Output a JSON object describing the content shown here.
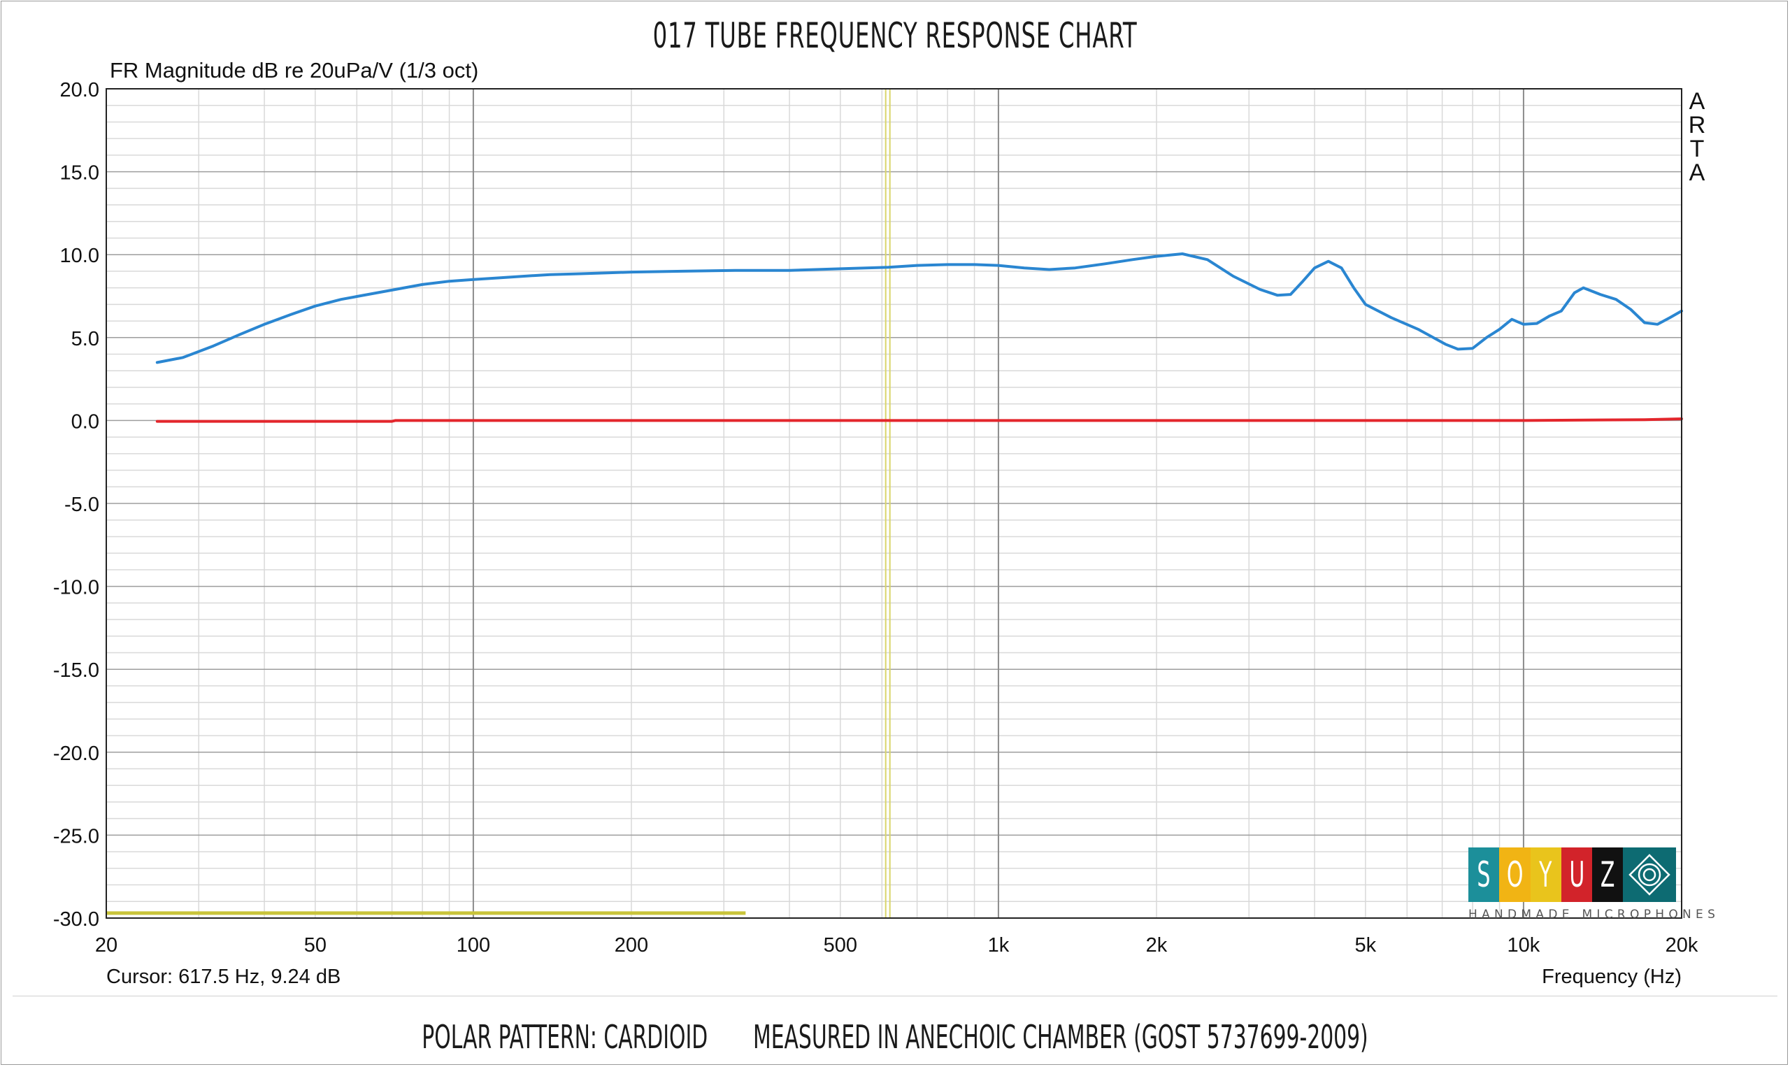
{
  "chart_data": {
    "type": "line",
    "title": "017 TUBE FREQUENCY RESPONSE CHART",
    "ylabel": "FR Magnitude dB re 20uPa/V (1/3 oct)",
    "xlabel": "Frequency (Hz)",
    "x_scale": "log",
    "xlim": [
      20,
      20000
    ],
    "ylim": [
      -30,
      20
    ],
    "x_ticks": [
      {
        "v": 20,
        "label": "20"
      },
      {
        "v": 50,
        "label": "50"
      },
      {
        "v": 100,
        "label": "100"
      },
      {
        "v": 200,
        "label": "200"
      },
      {
        "v": 500,
        "label": "500"
      },
      {
        "v": 1000,
        "label": "1k"
      },
      {
        "v": 2000,
        "label": "2k"
      },
      {
        "v": 5000,
        "label": "5k"
      },
      {
        "v": 10000,
        "label": "10k"
      },
      {
        "v": 20000,
        "label": "20k"
      }
    ],
    "y_ticks": [
      {
        "v": 20,
        "label": "20.0"
      },
      {
        "v": 15,
        "label": "15.0"
      },
      {
        "v": 10,
        "label": "10.0"
      },
      {
        "v": 5,
        "label": "5.0"
      },
      {
        "v": 0,
        "label": "0.0"
      },
      {
        "v": -5,
        "label": "-5.0"
      },
      {
        "v": -10,
        "label": "-10.0"
      },
      {
        "v": -15,
        "label": "-15.0"
      },
      {
        "v": -20,
        "label": "-20.0"
      },
      {
        "v": -25,
        "label": "-25.0"
      },
      {
        "v": -30,
        "label": "-30.0"
      }
    ],
    "grid": true,
    "series": [
      {
        "color": "#2a86d1",
        "points": [
          [
            25,
            3.5
          ],
          [
            28,
            3.8
          ],
          [
            32,
            4.5
          ],
          [
            36,
            5.2
          ],
          [
            40,
            5.8
          ],
          [
            45,
            6.4
          ],
          [
            50,
            6.9
          ],
          [
            56,
            7.3
          ],
          [
            63,
            7.6
          ],
          [
            71,
            7.9
          ],
          [
            80,
            8.2
          ],
          [
            90,
            8.4
          ],
          [
            100,
            8.5
          ],
          [
            112,
            8.6
          ],
          [
            125,
            8.7
          ],
          [
            140,
            8.8
          ],
          [
            160,
            8.85
          ],
          [
            180,
            8.9
          ],
          [
            200,
            8.95
          ],
          [
            250,
            9.0
          ],
          [
            315,
            9.05
          ],
          [
            400,
            9.05
          ],
          [
            500,
            9.15
          ],
          [
            617.5,
            9.24
          ],
          [
            700,
            9.35
          ],
          [
            800,
            9.4
          ],
          [
            900,
            9.4
          ],
          [
            1000,
            9.35
          ],
          [
            1120,
            9.2
          ],
          [
            1250,
            9.1
          ],
          [
            1400,
            9.2
          ],
          [
            1600,
            9.45
          ],
          [
            1800,
            9.7
          ],
          [
            2000,
            9.9
          ],
          [
            2240,
            10.05
          ],
          [
            2500,
            9.7
          ],
          [
            2800,
            8.7
          ],
          [
            3150,
            7.9
          ],
          [
            3400,
            7.55
          ],
          [
            3600,
            7.6
          ],
          [
            3800,
            8.4
          ],
          [
            4000,
            9.2
          ],
          [
            4250,
            9.6
          ],
          [
            4500,
            9.2
          ],
          [
            4750,
            8.0
          ],
          [
            5000,
            7.0
          ],
          [
            5600,
            6.2
          ],
          [
            6300,
            5.5
          ],
          [
            7100,
            4.6
          ],
          [
            7500,
            4.3
          ],
          [
            8000,
            4.35
          ],
          [
            8500,
            5.0
          ],
          [
            9000,
            5.5
          ],
          [
            9500,
            6.1
          ],
          [
            10000,
            5.8
          ],
          [
            10600,
            5.85
          ],
          [
            11200,
            6.3
          ],
          [
            11800,
            6.6
          ],
          [
            12500,
            7.7
          ],
          [
            13000,
            8.0
          ],
          [
            14000,
            7.6
          ],
          [
            15000,
            7.3
          ],
          [
            16000,
            6.7
          ],
          [
            17000,
            5.9
          ],
          [
            18000,
            5.8
          ],
          [
            19000,
            6.2
          ],
          [
            20000,
            6.6
          ]
        ]
      },
      {
        "color": "#e3262c",
        "points": [
          [
            25,
            -0.05
          ],
          [
            70,
            -0.05
          ],
          [
            71,
            0.0
          ],
          [
            10000,
            0.0
          ],
          [
            17000,
            0.05
          ],
          [
            20000,
            0.1
          ]
        ]
      }
    ],
    "cursor": {
      "x": 617.5,
      "y": 9.24,
      "label": "Cursor: 617.5 Hz, 9.24 dB"
    },
    "bottom_marker": {
      "x_end": 330,
      "y": -29.7
    },
    "side_label": [
      "A",
      "R",
      "T",
      "A"
    ]
  },
  "footer": {
    "polar": "POLAR PATTERN: CARDIOID",
    "measured": "MEASURED IN ANECHOIC CHAMBER (GOST 5737699-2009)"
  },
  "logo": {
    "letters": [
      {
        "ch": "S",
        "color": "#1c8f9a"
      },
      {
        "ch": "O",
        "color": "#f1b414"
      },
      {
        "ch": "Y",
        "color": "#e9c41c"
      },
      {
        "ch": "U",
        "color": "#d2232a"
      },
      {
        "ch": "Z",
        "color": "#111111"
      }
    ],
    "tagline": "HANDMADE MICROPHONES",
    "emblem_color": "#0d6b72"
  }
}
